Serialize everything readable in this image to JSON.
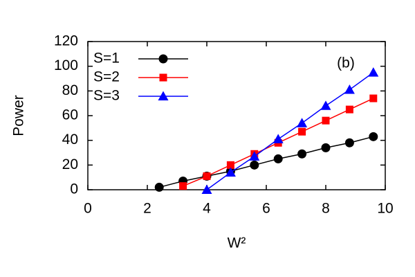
{
  "chart_data": {
    "type": "line",
    "annotation": "(b)",
    "x_label": "W²",
    "y_label": "Power",
    "xlim": [
      0,
      10
    ],
    "xticks": [
      0,
      2,
      4,
      6,
      8,
      10
    ],
    "ylim": [
      0,
      120
    ],
    "yticks": [
      0,
      20,
      40,
      60,
      80,
      100,
      120
    ],
    "legend": "top-left",
    "series": [
      {
        "name": "S=1",
        "color": "#000000",
        "marker": "circle",
        "x": [
          2.4,
          3.2,
          4.0,
          4.8,
          5.6,
          6.4,
          7.2,
          8.0,
          8.8,
          9.6
        ],
        "values": [
          2,
          7,
          11,
          15,
          20,
          25,
          29,
          34,
          38,
          43
        ]
      },
      {
        "name": "S=2",
        "color": "#ff0000",
        "marker": "square",
        "x": [
          3.2,
          4.0,
          4.8,
          5.6,
          6.4,
          7.2,
          8.0,
          8.8,
          9.6
        ],
        "values": [
          3,
          11,
          20,
          29,
          38,
          47,
          56,
          65,
          74
        ]
      },
      {
        "name": "S=3",
        "color": "#0000ff",
        "marker": "triangle",
        "x": [
          4.0,
          4.8,
          5.6,
          6.4,
          7.2,
          8.0,
          8.8,
          9.6
        ],
        "values": [
          0,
          14,
          27,
          41,
          54,
          68,
          81,
          95
        ]
      }
    ]
  }
}
